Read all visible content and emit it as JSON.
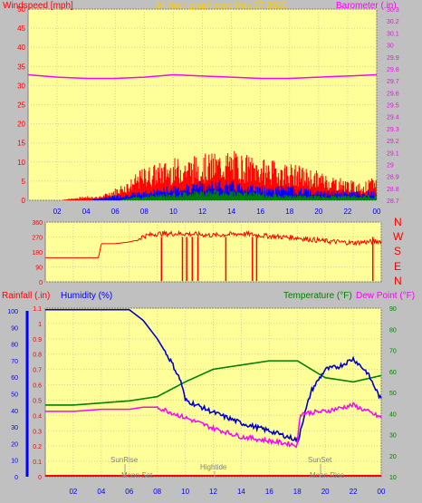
{
  "header": {
    "wind_label": "Windspeed [mph]",
    "title": "24 hour graph day:  May 07 2020",
    "baro_label": "Barometer (.in)"
  },
  "mid": {
    "compass": [
      "N",
      "W",
      "S",
      "E",
      "N"
    ]
  },
  "bottom": {
    "rain_label": "Rainfall (.in)",
    "hum_label": "Humidity (%)",
    "temp_label": "Temperature (°F)",
    "dew_label": "Dew Point (°F)",
    "events": [
      "SunRise",
      "Moon Set",
      "Hightide",
      "SunSet",
      "Moon Rise"
    ]
  },
  "colors": {
    "panel": "#ffff99",
    "frame": "#808080",
    "wind": "#ff0000",
    "baro": "#ff00ff",
    "gust": "#ff0000",
    "avg_wind": "#0000ff",
    "low_wind": "#008000",
    "direction": "#ff0000",
    "humidity": "#0000cc",
    "temperature": "#008000",
    "dewpoint": "#ff00ff",
    "rain": "#ff0000",
    "title": "#ffcc00"
  },
  "chart_data": [
    {
      "type": "line",
      "name": "wind_barometer",
      "x_ticks": [
        "02",
        "04",
        "06",
        "08",
        "10",
        "12",
        "14",
        "16",
        "18",
        "20",
        "22",
        "00"
      ],
      "ylabel": "Windspeed [mph]",
      "ylim": [
        0,
        50
      ],
      "y_ticks": [
        0,
        5,
        10,
        15,
        20,
        25,
        30,
        35,
        40,
        45,
        50
      ],
      "y2label": "Barometer (.in)",
      "y2lim": [
        28.7,
        30.3
      ],
      "y2_ticks": [
        "28.7",
        "28.8",
        "28.9",
        "29",
        "29.1",
        "29.2",
        "29.3",
        "29.4",
        "29.5",
        "29.6",
        "29.7",
        "29.8",
        "29.9",
        "30",
        "30.1",
        "30.2",
        "30.3"
      ],
      "barometer": {
        "x": [
          0,
          2,
          4,
          6,
          8,
          10,
          12,
          14,
          16,
          18,
          20,
          22,
          24
        ],
        "y": [
          29.75,
          29.73,
          29.72,
          29.72,
          29.73,
          29.75,
          29.74,
          29.73,
          29.72,
          29.72,
          29.73,
          29.74,
          29.75
        ]
      },
      "gust_envelope": {
        "x": [
          0,
          2,
          4,
          5,
          6,
          7,
          8,
          10,
          12,
          14,
          16,
          18,
          20,
          22,
          23,
          24
        ],
        "y": [
          0,
          0,
          1,
          1,
          3,
          5,
          8,
          10,
          11,
          12,
          10,
          9,
          7,
          5,
          4,
          6
        ]
      },
      "avg_envelope": {
        "x": [
          0,
          4,
          6,
          8,
          10,
          12,
          14,
          16,
          18,
          20,
          22,
          24
        ],
        "y": [
          0,
          0,
          1,
          2,
          3,
          4,
          4,
          3,
          3,
          2,
          2,
          2
        ]
      },
      "low_envelope": {
        "x": [
          0,
          6,
          8,
          10,
          12,
          14,
          16,
          18,
          20,
          22,
          24
        ],
        "y": [
          0,
          0,
          1,
          1.5,
          2,
          2,
          1.5,
          1,
          1,
          1,
          1
        ]
      },
      "grid": true
    },
    {
      "type": "scatter",
      "name": "wind_direction",
      "ylim": [
        0,
        360
      ],
      "y_ticks": [
        0,
        90,
        180,
        270,
        360
      ],
      "direction": {
        "x": [
          0,
          1,
          2,
          3,
          3.8,
          4,
          5,
          6,
          6.5,
          7,
          8,
          10,
          12,
          14,
          16,
          18,
          20,
          22,
          24
        ],
        "y": [
          145,
          145,
          145,
          145,
          145,
          230,
          230,
          240,
          250,
          275,
          290,
          290,
          280,
          290,
          275,
          265,
          245,
          235,
          245
        ]
      },
      "grid": true
    },
    {
      "type": "line",
      "name": "humidity_temperature",
      "x_ticks": [
        "02",
        "04",
        "06",
        "08",
        "10",
        "12",
        "14",
        "16",
        "18",
        "20",
        "22",
        "00"
      ],
      "ylabel": "Rainfall (.in)",
      "ylim": [
        0,
        1.1
      ],
      "y_ticks": [
        "0",
        "0.1",
        "0.2",
        "0.3",
        "0.4",
        "0.5",
        "0.6",
        "0.7",
        "0.8",
        "0.9",
        "1",
        "1.1"
      ],
      "left_outer_ticks": [
        0,
        10,
        20,
        30,
        40,
        50,
        60,
        70,
        80,
        90,
        100
      ],
      "y2label": "Temperature (°F)",
      "y2lim": [
        10,
        90
      ],
      "y2_ticks": [
        10,
        20,
        30,
        40,
        50,
        60,
        70,
        80,
        90
      ],
      "series": [
        {
          "name": "Humidity (%)",
          "x": [
            0,
            2,
            4,
            6,
            7,
            8,
            9,
            9.7,
            10,
            12,
            14,
            16,
            17,
            18,
            18.1,
            18.2,
            19,
            20,
            21,
            22,
            23,
            24
          ],
          "y": [
            1.09,
            1.09,
            1.09,
            1.09,
            1.02,
            0.9,
            0.75,
            0.62,
            0.5,
            0.42,
            0.35,
            0.3,
            0.27,
            0.24,
            0.23,
            0.3,
            0.56,
            0.7,
            0.72,
            0.77,
            0.68,
            0.5
          ]
        },
        {
          "name": "Temperature (°F)",
          "x": [
            0,
            2,
            4,
            6,
            8,
            10,
            12,
            14,
            16,
            18,
            20,
            22,
            24
          ],
          "y": [
            44,
            44,
            45,
            46,
            48,
            55,
            61,
            63,
            65,
            65,
            57,
            55,
            58
          ]
        },
        {
          "name": "Dew Point (°F)",
          "x": [
            0,
            2,
            4,
            6,
            7,
            8,
            10,
            12,
            14,
            16,
            18,
            18.2,
            20,
            22,
            24
          ],
          "y": [
            41,
            41,
            42,
            42,
            43,
            43,
            38,
            33,
            29,
            27,
            25,
            40,
            41,
            44,
            38
          ]
        }
      ],
      "grid": true
    }
  ]
}
